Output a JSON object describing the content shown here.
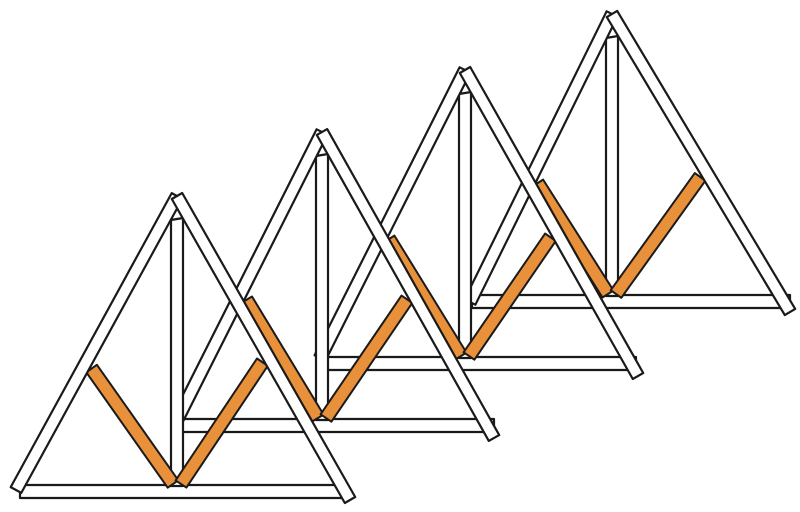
{
  "diagram": {
    "subject": "roof trusses",
    "truss_count": 4,
    "colors": {
      "background": "#ffffff",
      "outline": "#1a1a1a",
      "member_fill": "#ffffff",
      "highlighted_web_members": "#e8913a"
    }
  }
}
